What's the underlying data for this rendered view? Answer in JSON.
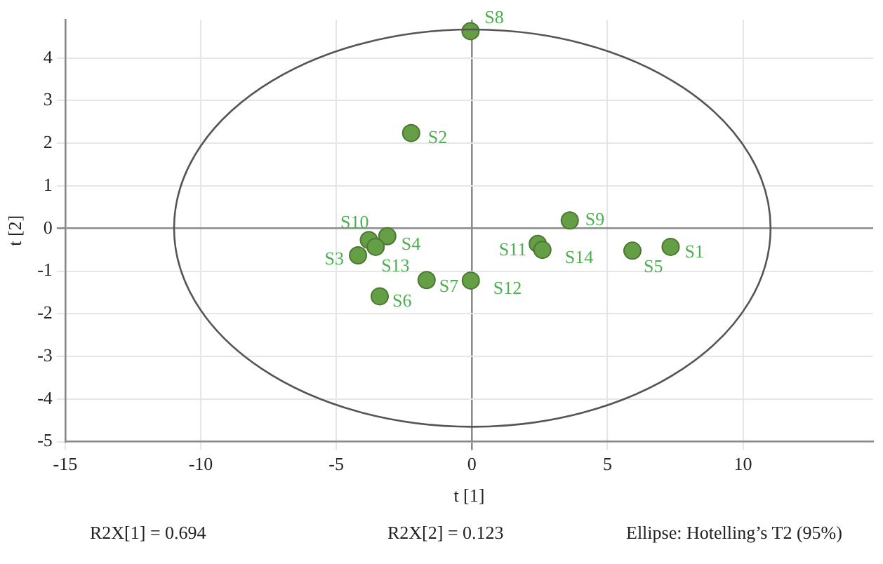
{
  "chart_data": {
    "type": "scatter",
    "xlabel": "t [1]",
    "ylabel": "t [2]",
    "xlim": [
      -15,
      14.8
    ],
    "ylim": [
      -5,
      4.9
    ],
    "xticks": [
      -15,
      -10,
      -5,
      0,
      5,
      10
    ],
    "yticks": [
      -5,
      -4,
      -3,
      -2,
      -1,
      0,
      1,
      2,
      3,
      4
    ],
    "grid": true,
    "marker": "circle",
    "annotations": [
      "R2X[1] = 0.694",
      "R2X[2] = 0.123",
      "Ellipse: Hotelling’s T2 (95%)"
    ],
    "series": [
      {
        "color": "#659f45",
        "x": [
          7.33,
          -2.24,
          -4.2,
          -3.12,
          5.92,
          -3.4,
          -1.67,
          -0.05,
          3.61,
          -3.8,
          2.43,
          -0.04,
          -3.55,
          2.6
        ],
        "values": [
          -0.43,
          2.24,
          -0.63,
          -0.18,
          -0.52,
          -1.59,
          -1.21,
          4.63,
          0.19,
          -0.27,
          -0.36,
          -1.22,
          -0.43,
          -0.5
        ],
        "value_labels": [
          "S1",
          "S2",
          "S3",
          "S4",
          "S5",
          "S6",
          "S7",
          "S8",
          "S9",
          "S10",
          "S11",
          "S12",
          "S13",
          "S14"
        ]
      }
    ]
  }
}
